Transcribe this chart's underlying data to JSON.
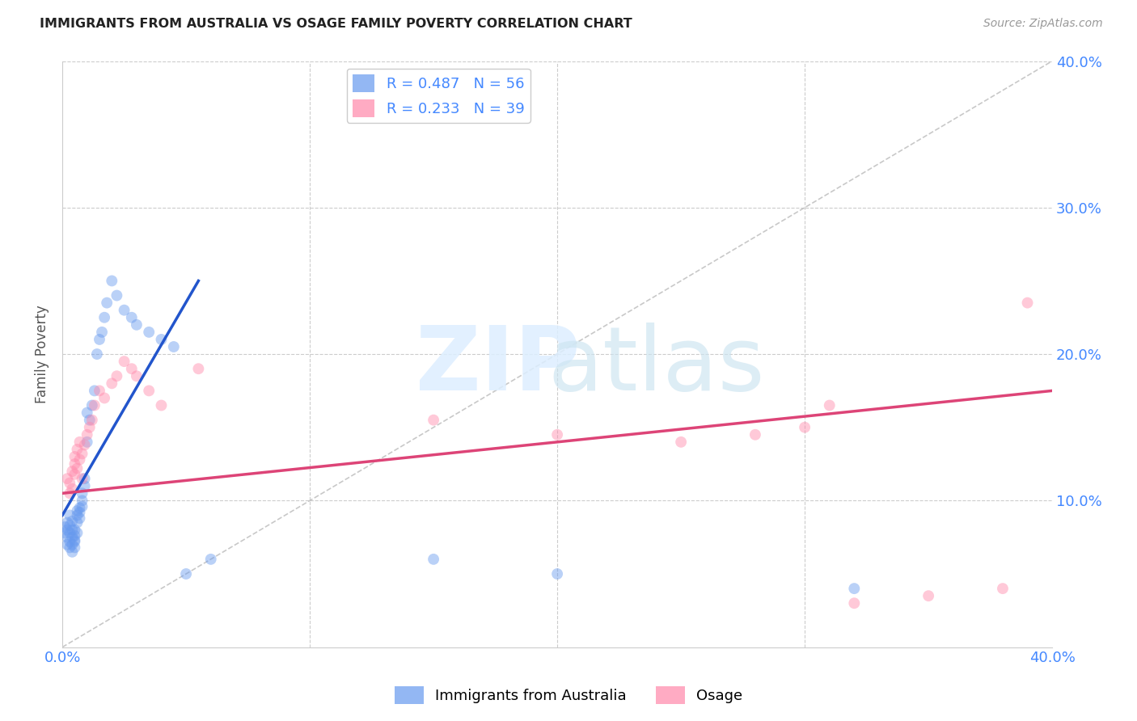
{
  "title": "IMMIGRANTS FROM AUSTRALIA VS OSAGE FAMILY POVERTY CORRELATION CHART",
  "source": "Source: ZipAtlas.com",
  "ylabel": "Family Poverty",
  "xlim": [
    0.0,
    0.4
  ],
  "ylim": [
    0.0,
    0.4
  ],
  "xticks": [
    0.0,
    0.1,
    0.2,
    0.3,
    0.4
  ],
  "yticks": [
    0.0,
    0.1,
    0.2,
    0.3,
    0.4
  ],
  "xticklabels": [
    "0.0%",
    "",
    "",
    "",
    "40.0%"
  ],
  "yticklabels": [
    "",
    "10.0%",
    "20.0%",
    "30.0%",
    "40.0%"
  ],
  "legend_entries": [
    {
      "label": "R = 0.487   N = 56",
      "color": "#8ab4f8"
    },
    {
      "label": "R = 0.233   N = 39",
      "color": "#f4a7b9"
    }
  ],
  "blue_scatter_x": [
    0.001,
    0.001,
    0.002,
    0.002,
    0.002,
    0.002,
    0.003,
    0.003,
    0.003,
    0.003,
    0.003,
    0.004,
    0.004,
    0.004,
    0.004,
    0.004,
    0.005,
    0.005,
    0.005,
    0.005,
    0.005,
    0.006,
    0.006,
    0.006,
    0.006,
    0.007,
    0.007,
    0.007,
    0.008,
    0.008,
    0.008,
    0.009,
    0.009,
    0.01,
    0.01,
    0.011,
    0.012,
    0.013,
    0.014,
    0.015,
    0.016,
    0.017,
    0.018,
    0.02,
    0.022,
    0.025,
    0.028,
    0.03,
    0.035,
    0.04,
    0.045,
    0.05,
    0.06,
    0.15,
    0.2,
    0.32
  ],
  "blue_scatter_y": [
    0.078,
    0.082,
    0.075,
    0.07,
    0.08,
    0.085,
    0.083,
    0.078,
    0.09,
    0.072,
    0.068,
    0.08,
    0.075,
    0.086,
    0.07,
    0.065,
    0.073,
    0.068,
    0.076,
    0.08,
    0.072,
    0.085,
    0.09,
    0.078,
    0.093,
    0.088,
    0.095,
    0.092,
    0.1,
    0.096,
    0.105,
    0.11,
    0.115,
    0.14,
    0.16,
    0.155,
    0.165,
    0.175,
    0.2,
    0.21,
    0.215,
    0.225,
    0.235,
    0.25,
    0.24,
    0.23,
    0.225,
    0.22,
    0.215,
    0.21,
    0.205,
    0.05,
    0.06,
    0.06,
    0.05,
    0.04
  ],
  "pink_scatter_x": [
    0.002,
    0.003,
    0.003,
    0.004,
    0.004,
    0.005,
    0.005,
    0.005,
    0.006,
    0.006,
    0.007,
    0.007,
    0.008,
    0.008,
    0.009,
    0.01,
    0.011,
    0.012,
    0.013,
    0.015,
    0.017,
    0.02,
    0.022,
    0.025,
    0.028,
    0.03,
    0.035,
    0.04,
    0.055,
    0.15,
    0.2,
    0.25,
    0.28,
    0.3,
    0.31,
    0.32,
    0.35,
    0.38,
    0.39
  ],
  "pink_scatter_y": [
    0.115,
    0.105,
    0.112,
    0.12,
    0.108,
    0.125,
    0.118,
    0.13,
    0.122,
    0.135,
    0.128,
    0.14,
    0.115,
    0.132,
    0.138,
    0.145,
    0.15,
    0.155,
    0.165,
    0.175,
    0.17,
    0.18,
    0.185,
    0.195,
    0.19,
    0.185,
    0.175,
    0.165,
    0.19,
    0.155,
    0.145,
    0.14,
    0.145,
    0.15,
    0.165,
    0.03,
    0.035,
    0.04,
    0.235
  ],
  "blue_line": {
    "x0": 0.0,
    "y0": 0.09,
    "x1": 0.055,
    "y1": 0.25
  },
  "pink_line": {
    "x0": 0.0,
    "y0": 0.105,
    "x1": 0.4,
    "y1": 0.175
  },
  "diagonal_line": {
    "x0": 0.0,
    "y0": 0.0,
    "x1": 0.4,
    "y1": 0.4
  },
  "scatter_size": 100,
  "scatter_alpha": 0.45,
  "blue_color": "#6699ee",
  "pink_color": "#ff88aa",
  "blue_line_color": "#2255cc",
  "pink_line_color": "#dd4477",
  "diagonal_color": "#bbbbbb",
  "grid_color": "#cccccc",
  "tick_color": "#4488ff",
  "background_color": "#ffffff"
}
